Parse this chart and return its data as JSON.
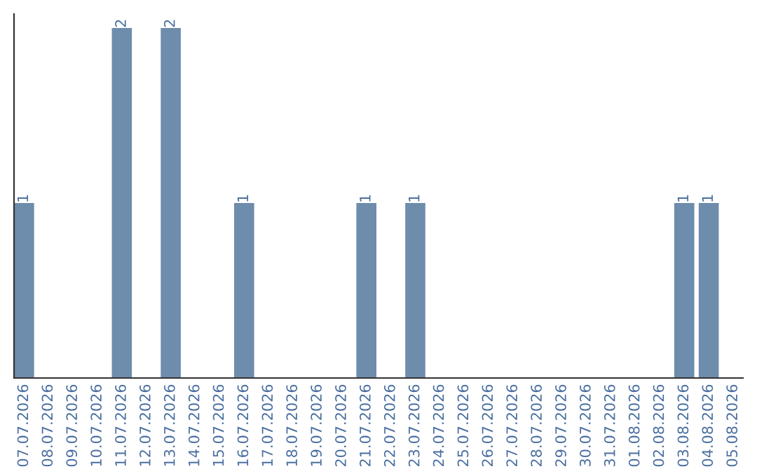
{
  "chart_data": {
    "type": "bar",
    "categories": [
      "07.07.2026",
      "08.07.2026",
      "09.07.2026",
      "10.07.2026",
      "11.07.2026",
      "12.07.2026",
      "13.07.2026",
      "14.07.2026",
      "15.07.2026",
      "16.07.2026",
      "17.07.2026",
      "18.07.2026",
      "19.07.2026",
      "20.07.2026",
      "21.07.2026",
      "22.07.2026",
      "23.07.2026",
      "24.07.2026",
      "25.07.2026",
      "26.07.2026",
      "27.07.2026",
      "28.07.2026",
      "29.07.2026",
      "30.07.2026",
      "31.07.2026",
      "01.08.2026",
      "02.08.2026",
      "03.08.2026",
      "04.08.2026",
      "05.08.2026"
    ],
    "values": [
      1,
      0,
      0,
      0,
      2,
      0,
      2,
      0,
      0,
      1,
      0,
      0,
      0,
      0,
      1,
      0,
      1,
      0,
      0,
      0,
      0,
      0,
      0,
      0,
      0,
      0,
      0,
      1,
      1,
      0
    ],
    "value_labels": [
      "1",
      null,
      null,
      null,
      "2",
      null,
      "2",
      null,
      null,
      "1",
      null,
      null,
      null,
      null,
      "1",
      null,
      "1",
      null,
      null,
      null,
      null,
      null,
      null,
      null,
      null,
      null,
      null,
      "1",
      "1",
      null
    ],
    "color": "#6e8cab",
    "ylim": [
      0,
      2.08
    ],
    "tick_labels": "x",
    "grid": false,
    "legend": false
  }
}
